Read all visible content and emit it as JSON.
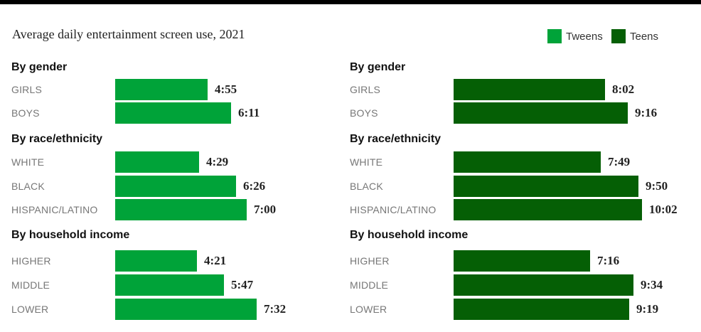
{
  "title": "Average daily entertainment screen use, 2021",
  "legend": [
    {
      "label": "Tweens",
      "color": "#00a339"
    },
    {
      "label": "Teens",
      "color": "#055f05"
    }
  ],
  "chart_data": [
    {
      "type": "bar",
      "orientation": "horizontal",
      "series_name": "Tweens",
      "color": "#00a339",
      "unit": "hours:minutes",
      "xlim_minutes": [
        0,
        600
      ],
      "groups": [
        {
          "title": "By gender",
          "items": [
            {
              "label": "GIRLS",
              "value": "4:55",
              "minutes": 295
            },
            {
              "label": "BOYS",
              "value": "6:11",
              "minutes": 371
            }
          ]
        },
        {
          "title": "By race/ethnicity",
          "items": [
            {
              "label": "WHITE",
              "value": "4:29",
              "minutes": 269
            },
            {
              "label": "BLACK",
              "value": "6:26",
              "minutes": 386
            },
            {
              "label": "HISPANIC/LATINO",
              "value": "7:00",
              "minutes": 420
            }
          ]
        },
        {
          "title": "By household income",
          "items": [
            {
              "label": "HIGHER",
              "value": "4:21",
              "minutes": 261
            },
            {
              "label": "MIDDLE",
              "value": "5:47",
              "minutes": 347
            },
            {
              "label": "LOWER",
              "value": "7:32",
              "minutes": 452
            }
          ]
        }
      ]
    },
    {
      "type": "bar",
      "orientation": "horizontal",
      "series_name": "Teens",
      "color": "#055f05",
      "unit": "hours:minutes",
      "xlim_minutes": [
        0,
        700
      ],
      "groups": [
        {
          "title": "By gender",
          "items": [
            {
              "label": "GIRLS",
              "value": "8:02",
              "minutes": 482
            },
            {
              "label": "BOYS",
              "value": "9:16",
              "minutes": 556
            }
          ]
        },
        {
          "title": "By race/ethnicity",
          "items": [
            {
              "label": "WHITE",
              "value": "7:49",
              "minutes": 469
            },
            {
              "label": "BLACK",
              "value": "9:50",
              "minutes": 590
            },
            {
              "label": "HISPANIC/LATINO",
              "value": "10:02",
              "minutes": 602
            }
          ]
        },
        {
          "title": "By household income",
          "items": [
            {
              "label": "HIGHER",
              "value": "7:16",
              "minutes": 436
            },
            {
              "label": "MIDDLE",
              "value": "9:34",
              "minutes": 574
            },
            {
              "label": "LOWER",
              "value": "9:19",
              "minutes": 559
            }
          ]
        }
      ]
    }
  ]
}
